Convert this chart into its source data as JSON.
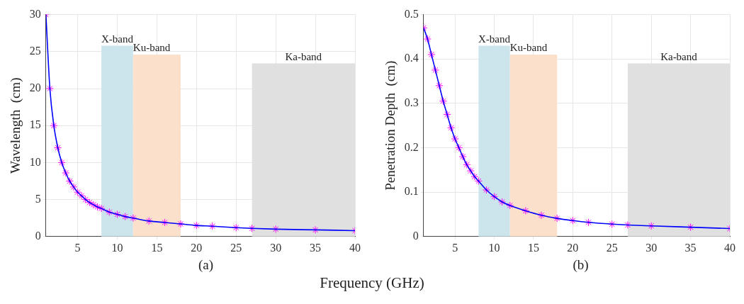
{
  "chart_data": [
    {
      "type": "line",
      "xlabel": "Frequency  (GHz)",
      "ylabel": "Wavelength  (cm)",
      "annotations": [
        "(a)"
      ],
      "x": [
        1,
        1.5,
        2,
        2.5,
        3,
        3.5,
        4,
        4.5,
        5,
        5.5,
        6,
        6.5,
        7,
        7.5,
        8,
        9,
        10,
        11,
        12,
        14,
        16,
        18,
        20,
        22,
        25,
        27,
        30,
        35,
        40
      ],
      "series": [
        {
          "color": "#0000ff",
          "marker": "none",
          "values": [
            30,
            20,
            15,
            12,
            10,
            8.6,
            7.5,
            6.7,
            6,
            5.5,
            5,
            4.6,
            4.3,
            4,
            3.8,
            3.3,
            3,
            2.7,
            2.5,
            2.1,
            1.9,
            1.7,
            1.5,
            1.4,
            1.2,
            1.1,
            1,
            0.9,
            0.8
          ]
        },
        {
          "type": "scatter",
          "color": "#ff00ff",
          "marker": "cross",
          "values": [
            30,
            20,
            15,
            12,
            10,
            8.6,
            7.5,
            6.7,
            6,
            5.5,
            5,
            4.6,
            4.3,
            4,
            3.8,
            3.3,
            3,
            2.7,
            2.5,
            2.1,
            1.9,
            1.7,
            1.5,
            1.4,
            1.2,
            1.1,
            1,
            0.9,
            0.8
          ]
        }
      ],
      "xlim": [
        1,
        40
      ],
      "xticks": [
        5,
        10,
        15,
        20,
        25,
        30,
        35,
        40
      ],
      "ylim": [
        0,
        30
      ],
      "yticks": [
        0,
        5,
        10,
        15,
        20,
        25,
        30
      ],
      "grid": true,
      "legend": false,
      "bands": [
        {
          "axis": "x",
          "from": 8,
          "to": 12,
          "label": "X-band",
          "color": "#cce5ec"
        },
        {
          "axis": "x",
          "from": 12,
          "to": 18,
          "label": "Ku-band",
          "color": "#fbe0cc"
        },
        {
          "axis": "x",
          "from": 27,
          "to": 40,
          "label": "Ka-band",
          "color": "#e0e0e0"
        }
      ]
    },
    {
      "type": "line",
      "ylabel": "Penetration Depth  (cm)",
      "annotations": [
        "(b)"
      ],
      "x": [
        1,
        1.5,
        2,
        2.5,
        3,
        3.5,
        4,
        4.5,
        5,
        5.5,
        6,
        6.5,
        7,
        7.5,
        8,
        9,
        10,
        11,
        12,
        14,
        16,
        18,
        20,
        22,
        25,
        27,
        30,
        35,
        40
      ],
      "series": [
        {
          "color": "#0000ff",
          "marker": "none",
          "values": [
            0.47,
            0.445,
            0.41,
            0.375,
            0.34,
            0.305,
            0.275,
            0.245,
            0.22,
            0.2,
            0.18,
            0.162,
            0.148,
            0.135,
            0.125,
            0.105,
            0.09,
            0.078,
            0.07,
            0.058,
            0.048,
            0.041,
            0.036,
            0.032,
            0.028,
            0.026,
            0.024,
            0.021,
            0.018
          ]
        },
        {
          "type": "scatter",
          "color": "#ff00ff",
          "marker": "cross",
          "values": [
            0.47,
            0.445,
            0.41,
            0.375,
            0.34,
            0.305,
            0.275,
            0.245,
            0.22,
            0.2,
            0.18,
            0.162,
            0.148,
            0.135,
            0.125,
            0.105,
            0.09,
            0.078,
            0.07,
            0.058,
            0.048,
            0.041,
            0.036,
            0.032,
            0.028,
            0.026,
            0.024,
            0.021,
            0.018
          ]
        }
      ],
      "xlim": [
        1,
        40
      ],
      "xticks": [
        5,
        10,
        15,
        20,
        25,
        30,
        35,
        40
      ],
      "ylim": [
        0,
        0.5
      ],
      "yticks": [
        0,
        0.1,
        0.2,
        0.3,
        0.4,
        0.5
      ],
      "grid": true,
      "legend": false,
      "bands": [
        {
          "axis": "x",
          "from": 8,
          "to": 12,
          "label": "X-band",
          "color": "#cce5ec"
        },
        {
          "axis": "x",
          "from": 12,
          "to": 18,
          "label": "Ku-band",
          "color": "#fbe0cc"
        },
        {
          "axis": "x",
          "from": 27,
          "to": 40,
          "label": "Ka-band",
          "color": "#e0e0e0"
        }
      ]
    }
  ]
}
